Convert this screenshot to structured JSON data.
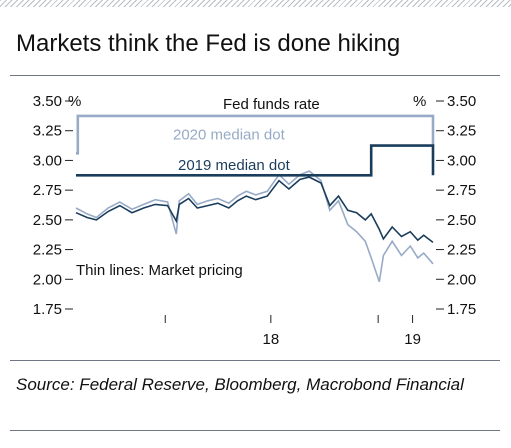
{
  "title": "Markets think the Fed is done hiking",
  "source": "Source: Federal Reserve, Bloomberg, Macrobond Financial",
  "colors": {
    "fed_funds": "#97abc6",
    "median_2020": "#97abc6",
    "median_2019": "#1b3d5c",
    "pricing_2019": "#1b3d5c",
    "pricing_2020": "#97abc6",
    "axis": "#222222",
    "rule": "#6e7884"
  },
  "chart_data": {
    "type": "line",
    "title": "Markets think the Fed is done hiking",
    "ylabel_left": "%",
    "ylabel_right": "%",
    "ylim": [
      1.75,
      3.5
    ],
    "yticks": [
      1.75,
      2.0,
      2.25,
      2.5,
      2.75,
      3.0,
      3.25,
      3.5
    ],
    "ytick_labels": [
      "1.75",
      "2.00",
      "2.25",
      "2.50",
      "2.75",
      "3.00",
      "3.25",
      "3.50"
    ],
    "xlim": [
      "2017-08-01",
      "2019-04-05"
    ],
    "xticks": [
      {
        "date": "2018-01-01",
        "label": ""
      },
      {
        "date": "2018-07-01",
        "label": "18"
      },
      {
        "date": "2019-01-01",
        "label": ""
      },
      {
        "date": "2019-03-01",
        "label": "19"
      }
    ],
    "grid": false,
    "annotations": [
      {
        "text": "Fed funds rate",
        "series": "fed_funds"
      },
      {
        "text": "2020 median dot",
        "series": "median_2020"
      },
      {
        "text": "2019 median dot",
        "series": "median_2019"
      },
      {
        "text": "Thin lines: Market pricing",
        "series": "pricing"
      }
    ],
    "series": [
      {
        "key": "fed_funds",
        "role": "step",
        "x": [
          "2017-08-01",
          "2017-08-04",
          "2018-12-20",
          "2019-04-05"
        ],
        "values": [
          3.06,
          3.375,
          3.375,
          3.125
        ]
      },
      {
        "key": "median_2019",
        "role": "step",
        "x": [
          "2017-08-01",
          "2018-03-22",
          "2018-12-20",
          "2019-04-05"
        ],
        "values": [
          2.875,
          2.875,
          3.125,
          2.875
        ]
      },
      {
        "key": "pricing_2019",
        "role": "market",
        "x": [
          "2017-08-01",
          "2017-08-20",
          "2017-09-05",
          "2017-09-25",
          "2017-10-15",
          "2017-11-05",
          "2017-11-25",
          "2017-12-15",
          "2018-01-05",
          "2018-01-20",
          "2018-01-25",
          "2018-02-10",
          "2018-02-25",
          "2018-03-15",
          "2018-04-01",
          "2018-04-20",
          "2018-05-05",
          "2018-05-20",
          "2018-06-05",
          "2018-06-25",
          "2018-07-15",
          "2018-08-01",
          "2018-08-20",
          "2018-09-05",
          "2018-09-25",
          "2018-10-10",
          "2018-10-25",
          "2018-11-10",
          "2018-11-25",
          "2018-12-10",
          "2018-12-20",
          "2019-01-03",
          "2019-01-10",
          "2019-01-25",
          "2019-02-10",
          "2019-02-25",
          "2019-03-10",
          "2019-03-20",
          "2019-04-05"
        ],
        "values": [
          2.56,
          2.52,
          2.5,
          2.57,
          2.62,
          2.56,
          2.6,
          2.63,
          2.62,
          2.49,
          2.63,
          2.68,
          2.6,
          2.62,
          2.64,
          2.6,
          2.66,
          2.7,
          2.67,
          2.7,
          2.83,
          2.76,
          2.84,
          2.86,
          2.81,
          2.62,
          2.7,
          2.58,
          2.56,
          2.5,
          2.55,
          2.42,
          2.34,
          2.44,
          2.36,
          2.4,
          2.33,
          2.37,
          2.31
        ]
      },
      {
        "key": "pricing_2020",
        "role": "market",
        "x": [
          "2017-08-01",
          "2017-08-20",
          "2017-09-05",
          "2017-09-25",
          "2017-10-15",
          "2017-11-05",
          "2017-11-25",
          "2017-12-15",
          "2018-01-05",
          "2018-01-20",
          "2018-01-25",
          "2018-02-10",
          "2018-02-25",
          "2018-03-15",
          "2018-04-01",
          "2018-04-20",
          "2018-05-05",
          "2018-05-20",
          "2018-06-05",
          "2018-06-25",
          "2018-07-15",
          "2018-08-01",
          "2018-08-20",
          "2018-09-05",
          "2018-09-25",
          "2018-10-10",
          "2018-10-25",
          "2018-11-10",
          "2018-11-25",
          "2018-12-10",
          "2018-12-20",
          "2019-01-03",
          "2019-01-10",
          "2019-01-25",
          "2019-02-10",
          "2019-02-25",
          "2019-03-10",
          "2019-03-20",
          "2019-04-05"
        ],
        "values": [
          2.6,
          2.55,
          2.52,
          2.6,
          2.65,
          2.59,
          2.63,
          2.67,
          2.65,
          2.38,
          2.66,
          2.72,
          2.63,
          2.66,
          2.68,
          2.64,
          2.7,
          2.74,
          2.71,
          2.74,
          2.88,
          2.8,
          2.88,
          2.91,
          2.83,
          2.58,
          2.66,
          2.46,
          2.4,
          2.32,
          2.18,
          1.98,
          2.2,
          2.32,
          2.2,
          2.28,
          2.18,
          2.22,
          2.13
        ]
      }
    ]
  }
}
